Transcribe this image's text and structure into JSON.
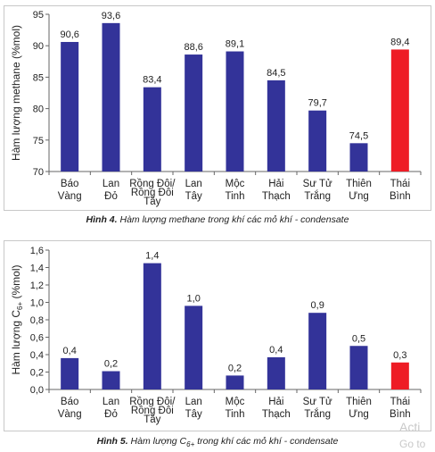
{
  "colors": {
    "bar": "#333399",
    "highlight": "#ee1c25",
    "axis": "#666666",
    "text": "#222222"
  },
  "chart_data": [
    {
      "type": "bar",
      "ylabel": "Hàm lượng methane (%mol)",
      "ylabel_parts": [
        {
          "text": "Hàm lượng methane (%mol)"
        }
      ],
      "ylim": [
        70,
        95
      ],
      "yticks": [
        "70",
        "75",
        "80",
        "85",
        "90",
        "95"
      ],
      "ytick_values": [
        70,
        75,
        80,
        85,
        90,
        95
      ],
      "categories": [
        [
          "Báo",
          "Vàng"
        ],
        [
          "Lan",
          "Đỏ"
        ],
        [
          "Rồng Đôi/",
          "Rồng Đôi",
          "Tây"
        ],
        [
          "Lan",
          "Tây"
        ],
        [
          "Mộc",
          "Tinh"
        ],
        [
          "Hải",
          "Thạch"
        ],
        [
          "Sư Tử",
          "Trắng"
        ],
        [
          "Thiên",
          "Ưng"
        ],
        [
          "Thái",
          "Bình"
        ]
      ],
      "values": [
        90.6,
        93.6,
        83.4,
        88.6,
        89.1,
        84.5,
        79.7,
        74.5,
        89.4
      ],
      "value_labels": [
        "90,6",
        "93,6",
        "83,4",
        "88,6",
        "89,1",
        "84,5",
        "79,7",
        "74,5",
        "89,4"
      ],
      "highlight_index": 8,
      "grid": false,
      "legend": "none"
    },
    {
      "type": "bar",
      "ylabel": "Hàm lượng C6+ (%mol)",
      "ylabel_parts": [
        {
          "text": "Hàm lượng C"
        },
        {
          "text": "6+",
          "sub": true
        },
        {
          "text": " (%mol)"
        }
      ],
      "ylim": [
        0,
        1.6
      ],
      "yticks": [
        "0,0",
        "0,2",
        "0,4",
        "0,6",
        "0,8",
        "1,0",
        "1,2",
        "1,4",
        "1,6"
      ],
      "ytick_values": [
        0,
        0.2,
        0.4,
        0.6,
        0.8,
        1.0,
        1.2,
        1.4,
        1.6
      ],
      "categories": [
        [
          "Báo",
          "Vàng"
        ],
        [
          "Lan",
          "Đỏ"
        ],
        [
          "Rồng Đôi/",
          "Rồng Đôi",
          "Tây"
        ],
        [
          "Lan",
          "Tây"
        ],
        [
          "Mộc",
          "Tinh"
        ],
        [
          "Hải",
          "Thạch"
        ],
        [
          "Sư Tử",
          "Trắng"
        ],
        [
          "Thiên",
          "Ưng"
        ],
        [
          "Thái",
          "Bình"
        ]
      ],
      "values": [
        0.36,
        0.21,
        1.45,
        0.96,
        0.16,
        0.37,
        0.88,
        0.5,
        0.31
      ],
      "value_labels": [
        "0,4",
        "0,2",
        "1,4",
        "1,0",
        "0,2",
        "0,4",
        "0,9",
        "0,5",
        "0,3"
      ],
      "highlight_index": 8,
      "grid": false,
      "legend": "none"
    }
  ],
  "captions": {
    "fig4_label": "Hình 4.",
    "fig4_text": " Hàm lượng methane trong khí các mỏ khí - condensate",
    "fig5_label": "Hình 5.",
    "fig5_text_a": " Hàm lượng C",
    "fig5_sub": "6+",
    "fig5_text_b": " trong khí các mỏ khí - condensate"
  },
  "watermark": {
    "line1": "Acti",
    "line2": "Go to"
  }
}
